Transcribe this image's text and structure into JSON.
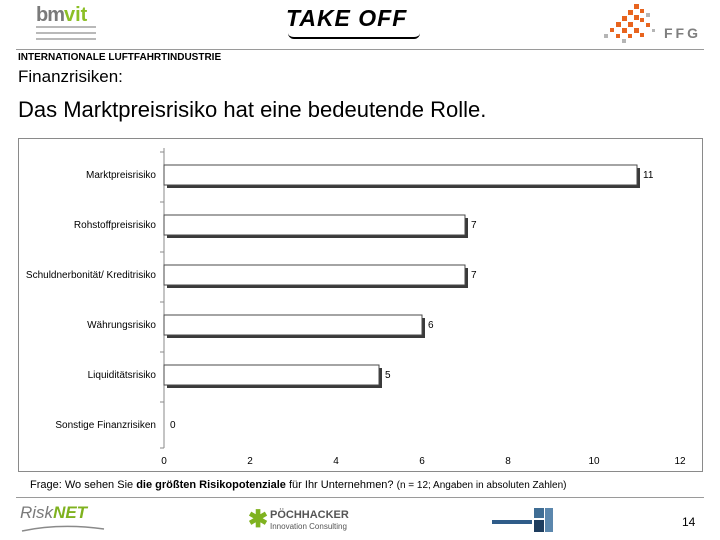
{
  "header": {
    "logos": {
      "bmvit": "bm",
      "bmvit_accent": "vit",
      "takeoff": "TAKE OFF",
      "ffg": "FFG"
    },
    "label": "INTERNATIONALE LUFTFAHRTINDUSTRIE",
    "subtitle": "Finanzrisiken:",
    "title": "Das Marktpreisrisiko hat eine bedeutende Rolle."
  },
  "chart_data": {
    "type": "bar",
    "orientation": "horizontal",
    "categories": [
      "Marktpreisrisiko",
      "Rohstoffpreisrisiko",
      "Schuldnerbonität/ Kreditrisiko",
      "Währungsrisiko",
      "Liquiditätsrisiko",
      "Sonstige Finanzrisiken"
    ],
    "values": [
      11,
      7,
      7,
      6,
      5,
      0
    ],
    "xlim": [
      0,
      12
    ],
    "xticks": [
      0,
      2,
      4,
      6,
      8,
      10,
      12
    ],
    "bar_color": "#ffffff",
    "bar_border_color": "#4a4a4a",
    "bar_shadow_color": "#3a3a3a",
    "grid": false,
    "data_labels": true
  },
  "question": {
    "prefix": "Frage: Wo sehen Sie ",
    "bold": "die größten Risikopotenziale",
    "suffix": " für Ihr Unternehmen? ",
    "note": "(n = 12; Angaben in absoluten Zahlen)"
  },
  "footer": {
    "risknet_a": "Risk",
    "risknet_b": "NET",
    "poechhacker_name": "PÖCHHACKER",
    "poechhacker_sub": "Innovation Consulting",
    "page_number": "14"
  }
}
